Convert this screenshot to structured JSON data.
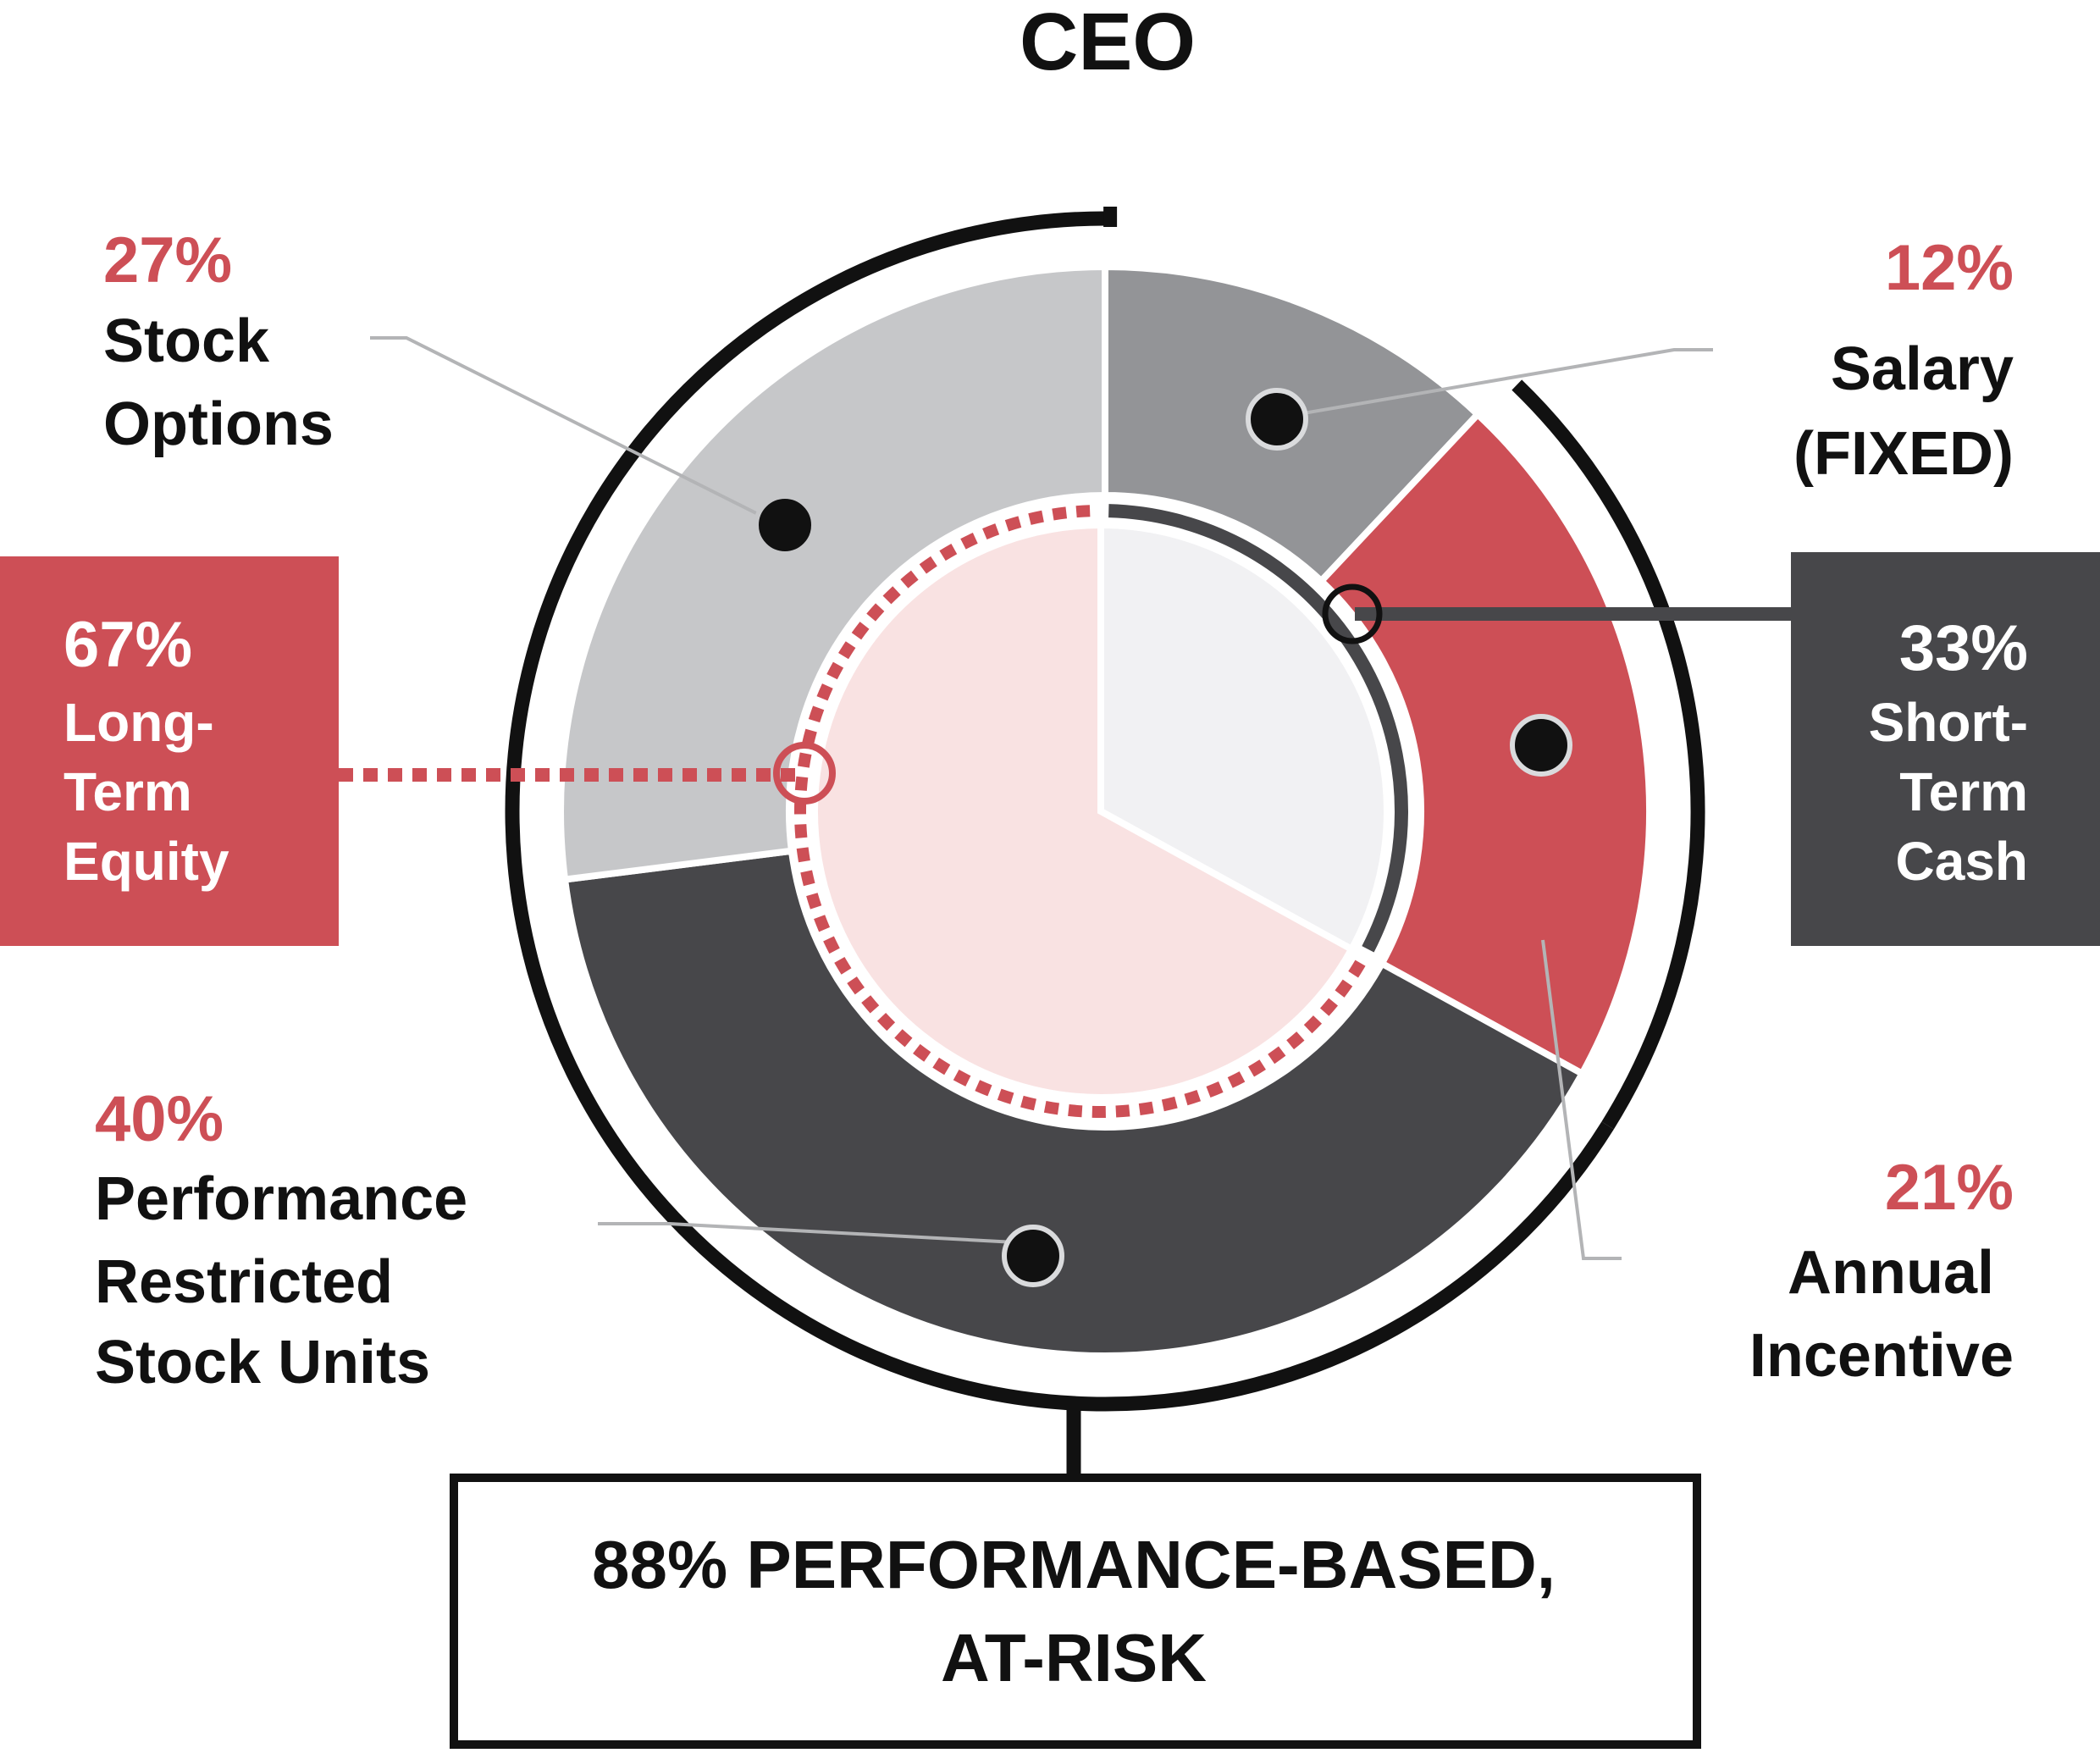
{
  "title": "CEO",
  "colors": {
    "red": "#cd4f56",
    "dark": "#47474a",
    "mid_gray": "#939497",
    "light_gray": "#c6c7c9",
    "pink": "#f9e2e2",
    "inner_light": "#f1f1f3",
    "black": "#111111"
  },
  "chart_data": {
    "type": "pie",
    "title": "CEO",
    "outer_ring": {
      "slices": [
        {
          "label": "Salary (FIXED)",
          "value": 12,
          "color": "#939497"
        },
        {
          "label": "Annual Incentive",
          "value": 21,
          "color": "#cd4f56"
        },
        {
          "label": "Performance Restricted Stock Units",
          "value": 40,
          "color": "#47474a"
        },
        {
          "label": "Stock Options",
          "value": 27,
          "color": "#c6c7c9"
        }
      ]
    },
    "inner_pie": {
      "slices": [
        {
          "label": "Short-Term Cash",
          "value": 33,
          "color": "#f1f1f3"
        },
        {
          "label": "Long-Term Equity",
          "value": 67,
          "color": "#f9e2e2"
        }
      ]
    },
    "performance_based_percent": 88
  },
  "labels": {
    "stock_options": {
      "pct": "27%",
      "line1": "Stock",
      "line2": "Options"
    },
    "salary": {
      "pct": "12%",
      "line1": "Salary",
      "line2": "(FIXED)"
    },
    "long_term": {
      "pct": "67%",
      "line1": "Long-",
      "line2": "Term",
      "line3": "Equity"
    },
    "short_term": {
      "pct": "33%",
      "line1": "Short-",
      "line2": "Term",
      "line3": "Cash"
    },
    "prsu": {
      "pct": "40%",
      "line1": "Performance",
      "line2": "Restricted",
      "line3": "Stock Units"
    },
    "annual": {
      "pct": "21%",
      "line1": "Annual",
      "line2": "Incentive"
    }
  },
  "summary": {
    "line1": "88% PERFORMANCE-BASED,",
    "line2": "AT-RISK"
  }
}
